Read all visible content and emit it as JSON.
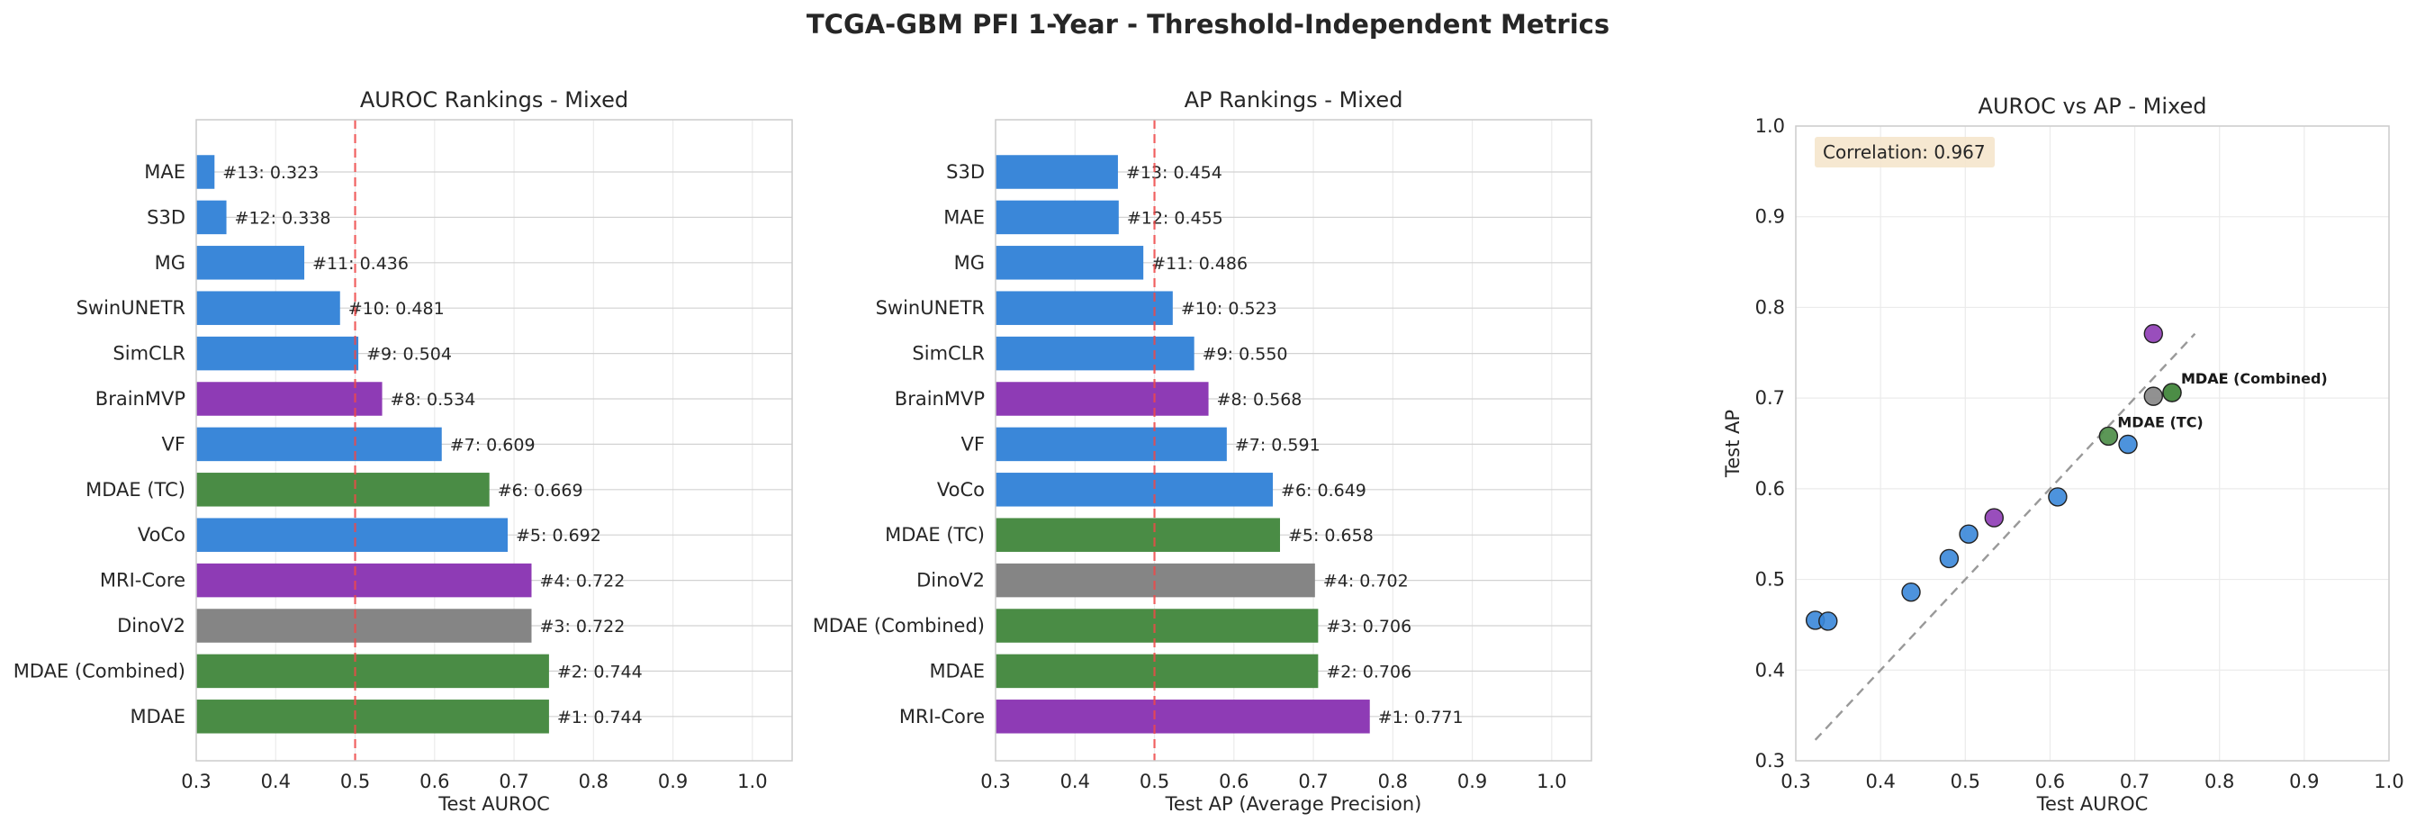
{
  "figure_title": "TCGA-GBM PFI 1-Year - Threshold-Independent Metrics",
  "colors": {
    "blue": "#3a87d9",
    "purple": "#8e3bb5",
    "green": "#4a8c45",
    "gray": "#858585",
    "reference_line": "#f04848",
    "diagonal": "#999999",
    "correlation_box": "#f5e6cc"
  },
  "chart_data": [
    {
      "type": "bar",
      "orientation": "horizontal",
      "title": "AUROC Rankings - Mixed",
      "xlabel": "Test AUROC",
      "xlim": [
        0.3,
        1.05
      ],
      "xticks": [
        "0.3",
        "0.4",
        "0.5",
        "0.6",
        "0.7",
        "0.8",
        "0.9",
        "1.0"
      ],
      "reference_line": 0.5,
      "grid": true,
      "categories": [
        "MAE",
        "S3D",
        "MG",
        "SwinUNETR",
        "SimCLR",
        "BrainMVP",
        "VF",
        "MDAE (TC)",
        "VoCo",
        "MRI-Core",
        "DinoV2",
        "MDAE (Combined)",
        "MDAE"
      ],
      "values": [
        0.323,
        0.338,
        0.436,
        0.481,
        0.504,
        0.534,
        0.609,
        0.669,
        0.692,
        0.722,
        0.722,
        0.744,
        0.744
      ],
      "bar_labels": [
        "#13: 0.323",
        "#12: 0.338",
        "#11: 0.436",
        "#10: 0.481",
        "#9: 0.504",
        "#8: 0.534",
        "#7: 0.609",
        "#6: 0.669",
        "#5: 0.692",
        "#4: 0.722",
        "#3: 0.722",
        "#2: 0.744",
        "#1: 0.744"
      ],
      "bar_colors": [
        "blue",
        "blue",
        "blue",
        "blue",
        "blue",
        "purple",
        "blue",
        "green",
        "blue",
        "purple",
        "gray",
        "green",
        "green"
      ]
    },
    {
      "type": "bar",
      "orientation": "horizontal",
      "title": "AP Rankings - Mixed",
      "xlabel": "Test AP (Average Precision)",
      "xlim": [
        0.3,
        1.05
      ],
      "xticks": [
        "0.3",
        "0.4",
        "0.5",
        "0.6",
        "0.7",
        "0.8",
        "0.9",
        "1.0"
      ],
      "reference_line": 0.5,
      "grid": true,
      "categories": [
        "S3D",
        "MAE",
        "MG",
        "SwinUNETR",
        "SimCLR",
        "BrainMVP",
        "VF",
        "VoCo",
        "MDAE (TC)",
        "DinoV2",
        "MDAE (Combined)",
        "MDAE",
        "MRI-Core"
      ],
      "values": [
        0.454,
        0.455,
        0.486,
        0.523,
        0.55,
        0.568,
        0.591,
        0.649,
        0.658,
        0.702,
        0.706,
        0.706,
        0.771
      ],
      "bar_labels": [
        "#13: 0.454",
        "#12: 0.455",
        "#11: 0.486",
        "#10: 0.523",
        "#9: 0.550",
        "#8: 0.568",
        "#7: 0.591",
        "#6: 0.649",
        "#5: 0.658",
        "#4: 0.702",
        "#3: 0.706",
        "#2: 0.706",
        "#1: 0.771"
      ],
      "bar_colors": [
        "blue",
        "blue",
        "blue",
        "blue",
        "blue",
        "purple",
        "blue",
        "blue",
        "green",
        "gray",
        "green",
        "green",
        "purple"
      ]
    },
    {
      "type": "scatter",
      "title": "AUROC vs AP - Mixed",
      "xlabel": "Test AUROC",
      "ylabel": "Test AP",
      "xlim": [
        0.3,
        1.0
      ],
      "ylim": [
        0.3,
        1.0
      ],
      "xticks": [
        "0.3",
        "0.4",
        "0.5",
        "0.6",
        "0.7",
        "0.8",
        "0.9",
        "1.0"
      ],
      "yticks": [
        "0.3",
        "0.4",
        "0.5",
        "0.6",
        "0.7",
        "0.8",
        "0.9",
        "1.0"
      ],
      "grid": true,
      "diagonal": [
        0.323,
        0.771
      ],
      "correlation_text": "Correlation: 0.967",
      "points": [
        {
          "x": 0.323,
          "y": 0.455,
          "color": "blue"
        },
        {
          "x": 0.338,
          "y": 0.454,
          "color": "blue"
        },
        {
          "x": 0.436,
          "y": 0.486,
          "color": "blue"
        },
        {
          "x": 0.481,
          "y": 0.523,
          "color": "blue"
        },
        {
          "x": 0.504,
          "y": 0.55,
          "color": "blue"
        },
        {
          "x": 0.534,
          "y": 0.568,
          "color": "purple"
        },
        {
          "x": 0.609,
          "y": 0.591,
          "color": "blue"
        },
        {
          "x": 0.692,
          "y": 0.649,
          "color": "blue"
        },
        {
          "x": 0.669,
          "y": 0.658,
          "color": "green"
        },
        {
          "x": 0.722,
          "y": 0.771,
          "color": "purple"
        },
        {
          "x": 0.722,
          "y": 0.702,
          "color": "gray"
        },
        {
          "x": 0.744,
          "y": 0.706,
          "color": "green"
        },
        {
          "x": 0.744,
          "y": 0.706,
          "color": "green"
        }
      ],
      "annotations": [
        {
          "text": "MDAE (TC)",
          "x": 0.669,
          "y": 0.658
        },
        {
          "text": "MDAE",
          "x": 0.744,
          "y": 0.706
        },
        {
          "text": "MDAE (Combined)",
          "x": 0.744,
          "y": 0.706
        }
      ]
    }
  ]
}
